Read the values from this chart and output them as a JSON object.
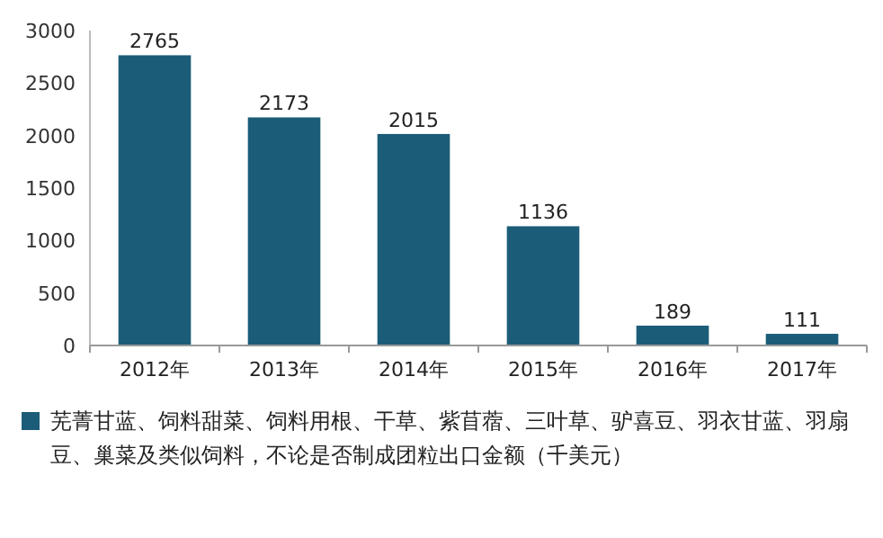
{
  "chart_data": {
    "type": "bar",
    "categories": [
      "2012年",
      "2013年",
      "2014年",
      "2015年",
      "2016年",
      "2017年"
    ],
    "series": [
      {
        "name": "芜菁甘蓝、饲料甜菜、饲料用根、干草、紫苜蓿、三叶草、驴喜豆、羽衣甘蓝、羽扇豆、巢菜及类似饲料，不论是否制成团粒出口金额（千美元）",
        "color": "#1b5d78",
        "values": [
          2765,
          2173,
          2015,
          1136,
          189,
          111
        ]
      }
    ],
    "ylim": [
      0,
      3000
    ],
    "yticks": [
      0,
      500,
      1000,
      1500,
      2000,
      2500,
      3000
    ],
    "data_labels": true,
    "legend": "bottom"
  }
}
